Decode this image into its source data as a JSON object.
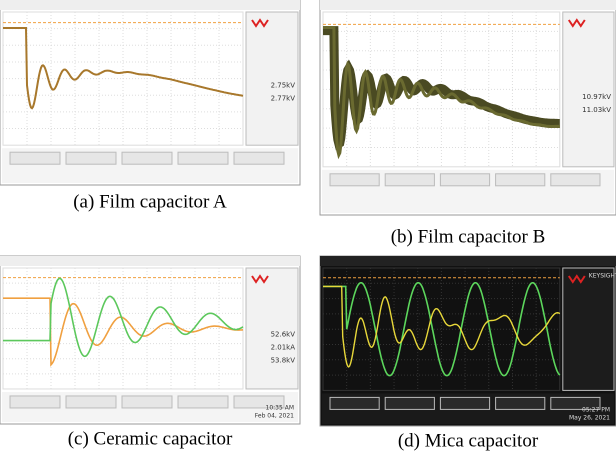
{
  "panels": [
    {
      "caption": "(a) Film capacitor A",
      "readouts": [
        "2.75kV",
        "2.77kV"
      ]
    },
    {
      "caption": "(b) Film capacitor B",
      "readouts": [
        "10.97kV",
        "11.03kV"
      ]
    },
    {
      "caption": "(c) Ceramic capacitor",
      "readouts": [
        "52.6kV",
        "2.01kA",
        "53.8kV"
      ],
      "clock": "10:35 AM",
      "date": "Feb 04, 2021"
    },
    {
      "caption": "(d) Mica capacitor",
      "brand": "KEYSIGHT",
      "clock": "05:27 PM",
      "date": "May 26, 2021"
    }
  ]
}
